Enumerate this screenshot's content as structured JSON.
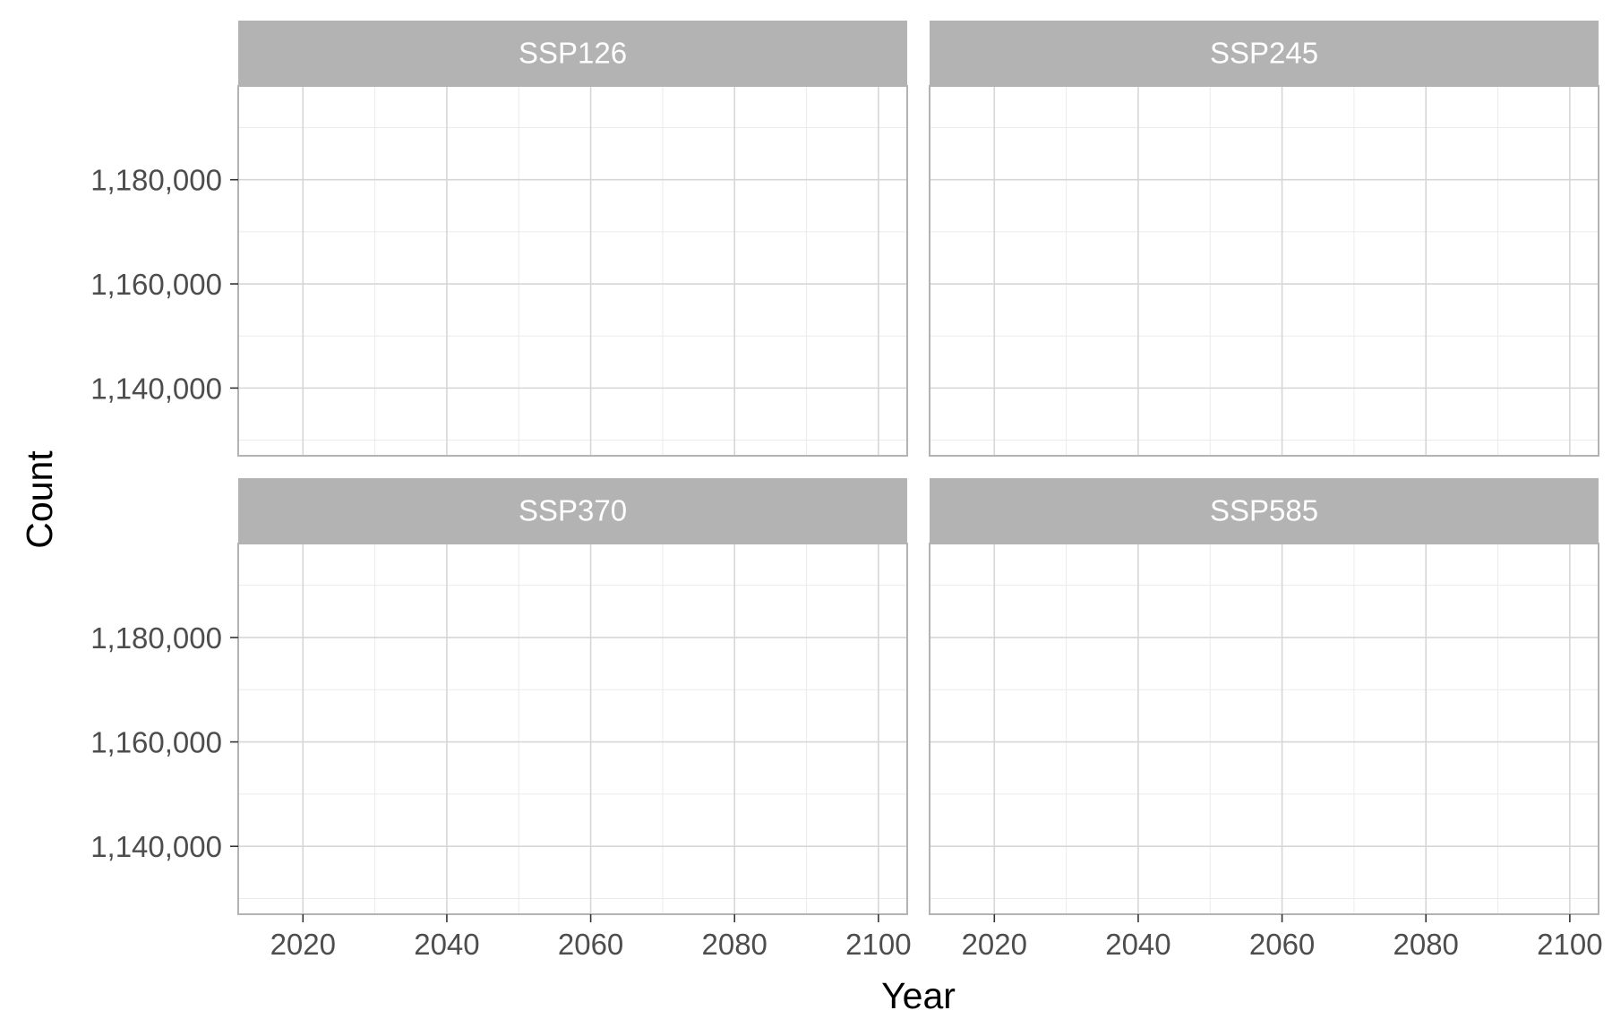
{
  "chart_data": {
    "type": "line",
    "xlabel": "Year",
    "ylabel": "Count",
    "xlim": [
      2011,
      2104
    ],
    "ylim": [
      1127000,
      1198000
    ],
    "x_ticks": [
      2020,
      2040,
      2060,
      2080,
      2100
    ],
    "x_minor": [
      2030,
      2050,
      2070,
      2090
    ],
    "y_ticks": [
      1140000,
      1160000,
      1180000
    ],
    "y_tick_labels": [
      "1,140,000",
      "1,160,000",
      "1,180,000"
    ],
    "y_minor": [
      1130000,
      1150000,
      1170000,
      1190000
    ],
    "grid": true,
    "facets": [
      {
        "label": "SSP126",
        "series": []
      },
      {
        "label": "SSP245",
        "series": []
      },
      {
        "label": "SSP370",
        "series": []
      },
      {
        "label": "SSP585",
        "series": []
      }
    ],
    "colors": {
      "strip_fill": "#b3b3b3",
      "strip_text": "#ffffff",
      "major_grid": "#d6d6d6",
      "minor_grid": "#ebebeb",
      "panel_border": "#b3b3b3",
      "tick_text": "#4d4d4d"
    }
  }
}
